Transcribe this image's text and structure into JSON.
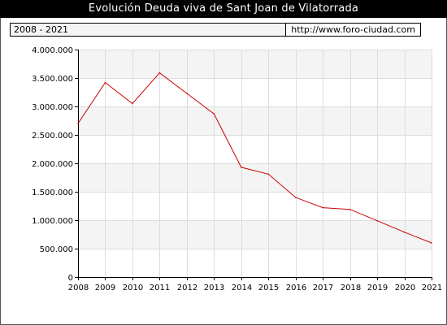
{
  "header": {
    "title": "Evolución Deuda viva de Sant Joan de Vilatorrada",
    "period": "2008 - 2021",
    "source": "http://www.foro-ciudad.com"
  },
  "chart_data": {
    "type": "line",
    "title": "Evolución Deuda viva de Sant Joan de Vilatorrada",
    "xlabel": "",
    "ylabel": "",
    "x": [
      2008,
      2009,
      2010,
      2011,
      2012,
      2013,
      2014,
      2015,
      2016,
      2017,
      2018,
      2019,
      2020,
      2021
    ],
    "series": [
      {
        "values": [
          2700000,
          3420000,
          3050000,
          3590000,
          3230000,
          2870000,
          1930000,
          1810000,
          1400000,
          1220000,
          1190000,
          990000,
          790000,
          600000
        ],
        "color": "#cc0000"
      }
    ],
    "ylim": [
      0,
      4000000
    ],
    "xlim": [
      2008,
      2021
    ],
    "y_ticks": [
      0,
      500000,
      1000000,
      1500000,
      2000000,
      2500000,
      3000000,
      3500000,
      4000000
    ],
    "y_tick_labels": [
      "0",
      "500.000",
      "1.000.000",
      "1.500.000",
      "2.000.000",
      "2.500.000",
      "3.000.000",
      "3.500.000",
      "4.000.000"
    ],
    "x_tick_labels": [
      "2008",
      "2009",
      "2010",
      "2011",
      "2012",
      "2013",
      "2014",
      "2015",
      "2016",
      "2017",
      "2018",
      "2019",
      "2020",
      "2021"
    ],
    "grid": true,
    "legend": "none",
    "colors": {
      "line": "#cc0000",
      "band": "#f4f4f4",
      "grid": "#dddddd",
      "axis": "#000000"
    }
  }
}
